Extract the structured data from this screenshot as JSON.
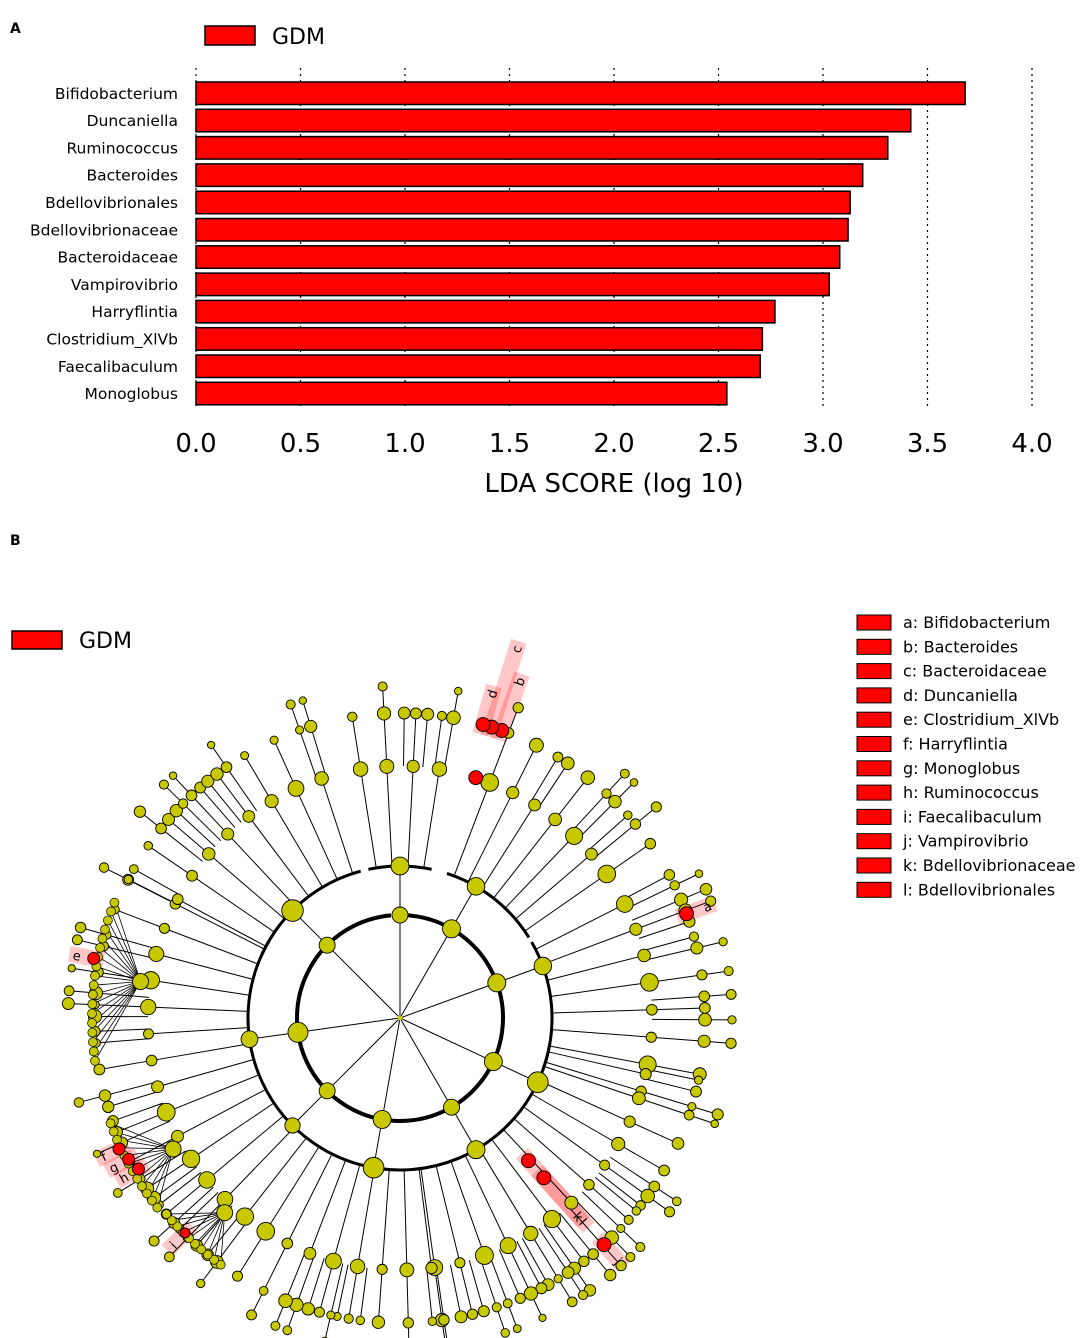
{
  "panel_a": {
    "label": "A"
  },
  "panel_b": {
    "label": "B"
  },
  "chart_data": [
    {
      "type": "bar",
      "orientation": "horizontal",
      "legend": {
        "entries": [
          "GDM"
        ],
        "placement": "top-left"
      },
      "categories": [
        "Bifidobacterium",
        "Duncaniella",
        "Ruminococcus",
        "Bacteroides",
        "Bdellovibrionales",
        "Bdellovibrionaceae",
        "Bacteroidaceae",
        "Vampirovibrio",
        "Harryflintia",
        "Clostridium_XlVb",
        "Faecalibaculum",
        "Monoglobus"
      ],
      "series": [
        {
          "name": "GDM",
          "color": "#ff0000",
          "values": [
            3.68,
            3.42,
            3.31,
            3.19,
            3.13,
            3.12,
            3.08,
            3.03,
            2.77,
            2.71,
            2.7,
            2.54
          ]
        }
      ],
      "xlabel": "LDA SCORE (log 10)",
      "ylabel": "",
      "xlim": [
        0.0,
        4.0
      ],
      "xticks": [
        "0.0",
        "0.5",
        "1.0",
        "1.5",
        "2.0",
        "2.5",
        "3.0",
        "3.5",
        "4.0"
      ],
      "grid": "vertical dotted"
    },
    {
      "type": "cladogram",
      "legend": {
        "entries": [
          "GDM"
        ],
        "placement": "top-left"
      },
      "node_color": "#c8c800",
      "highlight_color": "#ff0000",
      "highlighted": [
        {
          "letter": "a",
          "label": "a: Bifidobacterium"
        },
        {
          "letter": "b",
          "label": "b: Bacteroides"
        },
        {
          "letter": "c",
          "label": "c: Bacteroidaceae"
        },
        {
          "letter": "d",
          "label": "d: Duncaniella"
        },
        {
          "letter": "e",
          "label": "e: Clostridium_XlVb"
        },
        {
          "letter": "f",
          "label": "f: Harryflintia"
        },
        {
          "letter": "g",
          "label": "g: Monoglobus"
        },
        {
          "letter": "h",
          "label": "h: Ruminococcus"
        },
        {
          "letter": "i",
          "label": "i: Faecalibaculum"
        },
        {
          "letter": "j",
          "label": "j: Vampirovibrio"
        },
        {
          "letter": "k",
          "label": "k: Bdellovibrionaceae"
        },
        {
          "letter": "l",
          "label": "l: Bdellovibrionales"
        }
      ]
    }
  ]
}
